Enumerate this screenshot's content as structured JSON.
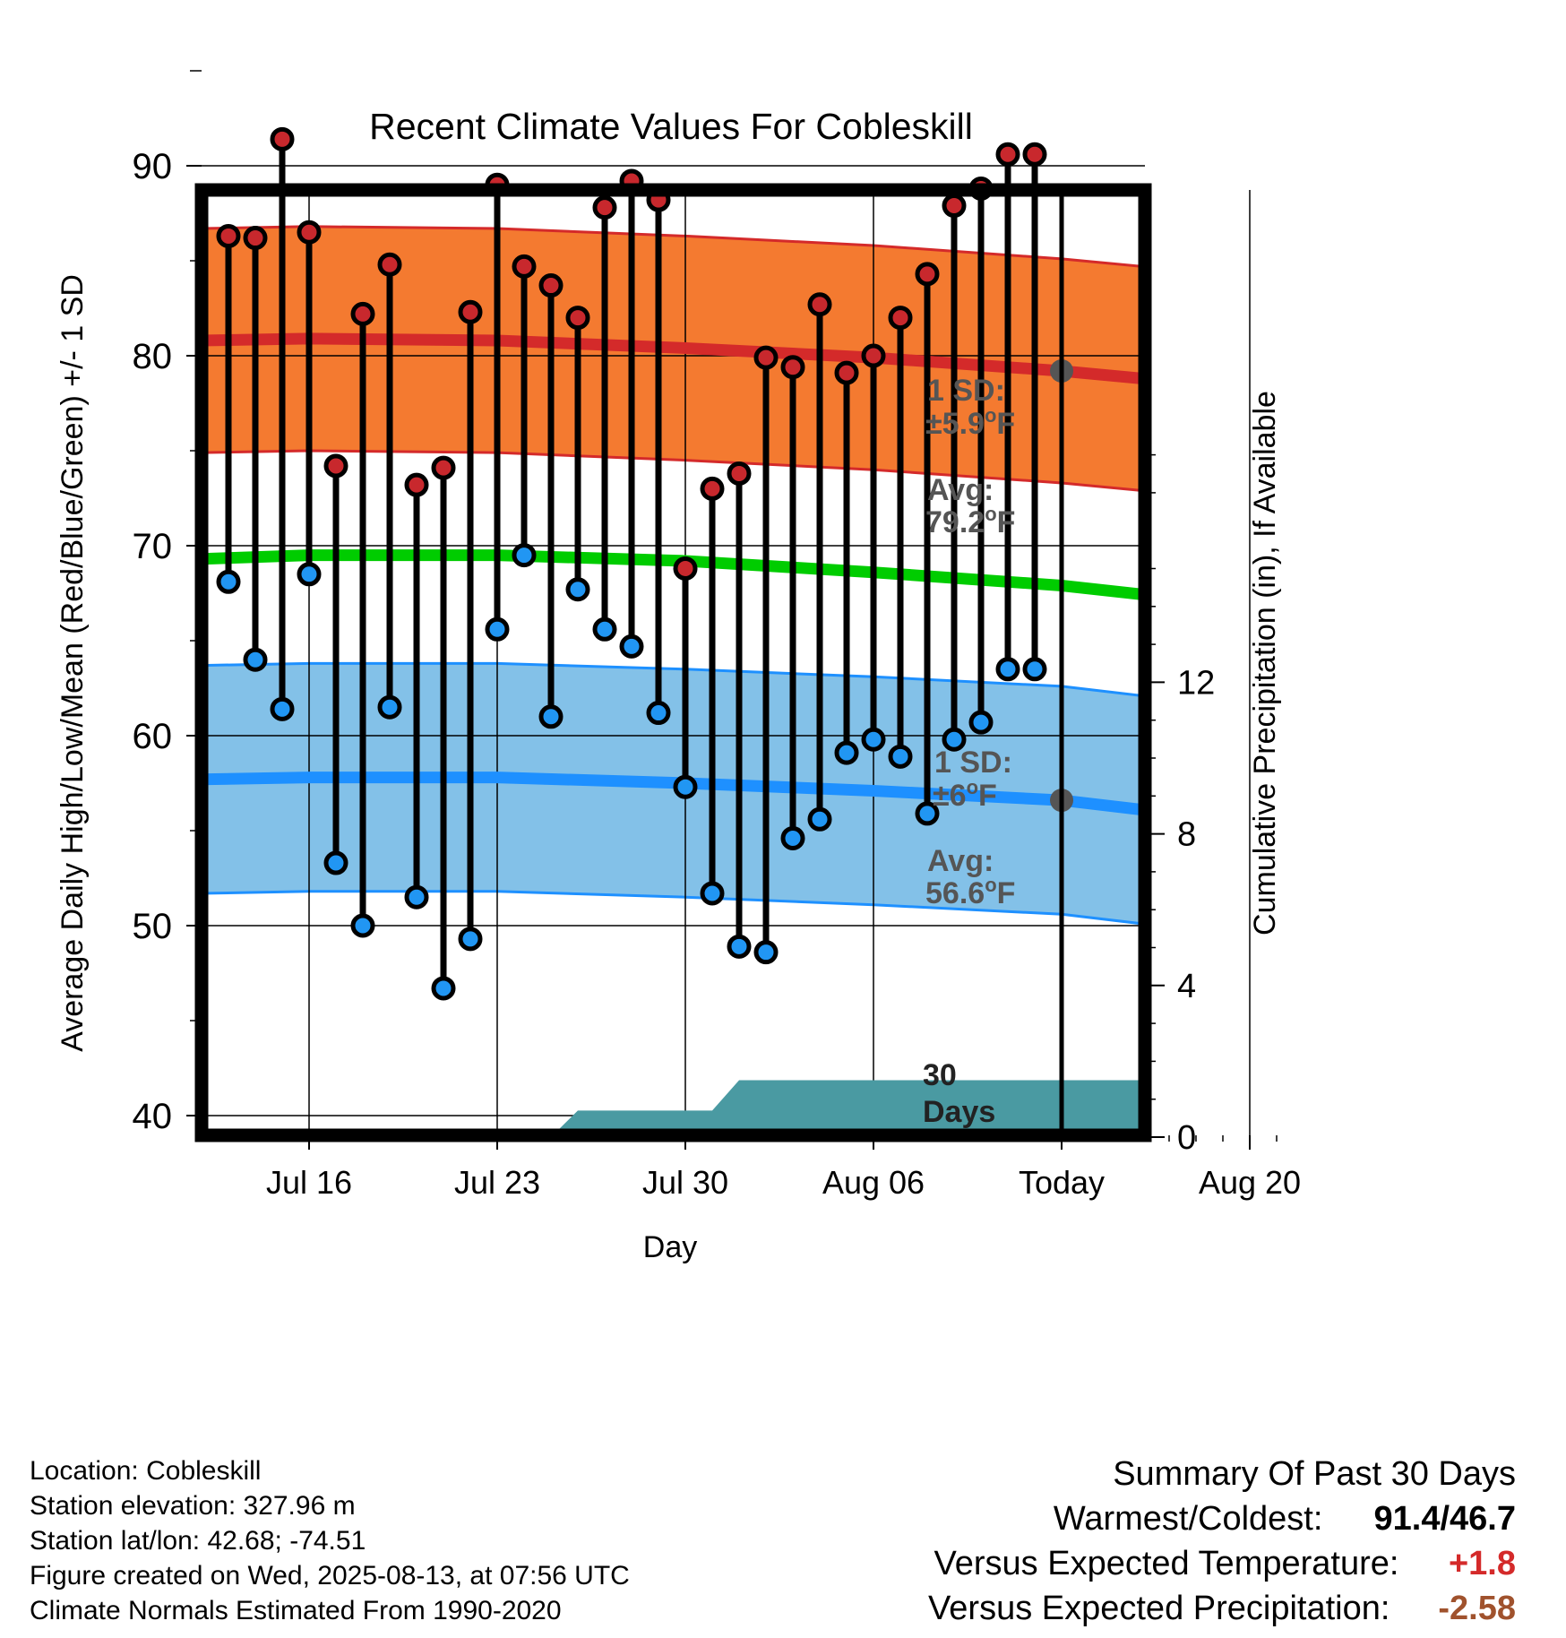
{
  "chart_data": {
    "type": "line",
    "title": "Recent Climate Values For Cobleskill",
    "xlabel": "Day",
    "ylabel": "Average Daily High/Low/Mean (Red/Blue/Green) +/- 1 SD",
    "y2label": "Cumulative Precipitation (in), If Available",
    "ylim": [
      39,
      96
    ],
    "y2lim": [
      0,
      19.5
    ],
    "xlim": [
      "2025-07-12",
      "2025-08-22"
    ],
    "x_ticks": [
      {
        "date": "2025-07-16",
        "label": "Jul 16"
      },
      {
        "date": "2025-07-23",
        "label": "Jul 23"
      },
      {
        "date": "2025-07-30",
        "label": "Jul 30"
      },
      {
        "date": "2025-08-06",
        "label": "Aug 06"
      },
      {
        "date": "2025-08-13",
        "label": "Today"
      },
      {
        "date": "2025-08-20",
        "label": "Aug 20"
      }
    ],
    "y_ticks": [
      40,
      50,
      60,
      70,
      80,
      90
    ],
    "y2_ticks": [
      0,
      4,
      8,
      12
    ],
    "today": "2025-08-13",
    "grid": true,
    "observed": {
      "dates": [
        "2025-07-13",
        "2025-07-14",
        "2025-07-15",
        "2025-07-16",
        "2025-07-17",
        "2025-07-18",
        "2025-07-19",
        "2025-07-20",
        "2025-07-21",
        "2025-07-22",
        "2025-07-23",
        "2025-07-24",
        "2025-07-25",
        "2025-07-26",
        "2025-07-27",
        "2025-07-28",
        "2025-07-29",
        "2025-07-30",
        "2025-07-31",
        "2025-08-01",
        "2025-08-02",
        "2025-08-03",
        "2025-08-04",
        "2025-08-05",
        "2025-08-06",
        "2025-08-07",
        "2025-08-08",
        "2025-08-09",
        "2025-08-10",
        "2025-08-11",
        "2025-08-12"
      ],
      "high": [
        86.3,
        86.2,
        91.4,
        86.5,
        74.2,
        82.2,
        84.8,
        73.2,
        74.1,
        82.3,
        89.0,
        84.7,
        83.7,
        82.0,
        87.8,
        89.2,
        88.2,
        68.8,
        73.0,
        73.8,
        79.9,
        79.4,
        82.7,
        79.1,
        80.0,
        82.0,
        84.3,
        87.9,
        88.8,
        90.6,
        90.6
      ],
      "low": [
        68.1,
        64.0,
        61.4,
        68.5,
        53.3,
        50.0,
        61.5,
        51.5,
        46.7,
        49.3,
        65.6,
        69.5,
        61.0,
        67.7,
        65.6,
        64.7,
        61.2,
        57.3,
        51.7,
        48.9,
        48.6,
        54.6,
        55.6,
        59.1,
        59.8,
        58.9,
        55.9,
        59.8,
        60.7,
        63.5,
        63.5
      ]
    },
    "normals": {
      "dates": [
        "2025-07-12",
        "2025-07-16",
        "2025-07-23",
        "2025-07-30",
        "2025-08-06",
        "2025-08-13",
        "2025-08-22"
      ],
      "high_avg": [
        80.8,
        80.9,
        80.8,
        80.4,
        79.9,
        79.2,
        78.0
      ],
      "low_avg": [
        57.7,
        57.8,
        57.8,
        57.5,
        57.1,
        56.6,
        55.1
      ],
      "mean_avg": [
        69.3,
        69.5,
        69.5,
        69.2,
        68.6,
        67.9,
        66.5
      ],
      "high_sd": 5.9,
      "low_sd": 6.0
    },
    "precip_cumulative": {
      "dates": [
        "2025-07-25",
        "2025-07-26",
        "2025-07-31",
        "2025-08-01",
        "2025-08-13",
        "2025-08-22"
      ],
      "values": [
        0,
        0.7,
        0.7,
        1.5,
        1.5,
        1.5
      ]
    },
    "annotations": {
      "high_sd": "1 SD:",
      "high_sd_value": "±5.9",
      "high_avg": "Avg:",
      "high_avg_value": "79.2",
      "low_sd": "1 SD:",
      "low_sd_value": "±6",
      "low_avg": "Avg:",
      "low_avg_value": "56.6",
      "unit_sup": "o",
      "unit_letter": "F",
      "precip_days": "30",
      "precip_days_label": "Days"
    },
    "colors": {
      "high_band": "#F47A30",
      "high_line": "#D42A2A",
      "high_point": "#C8282D",
      "low_band": "#83C1E8",
      "low_line": "#1E90FF",
      "low_point": "#2196F3",
      "mean_line": "#00CC00",
      "precip_fill": "#4A9AA2",
      "annotation": "#555555"
    }
  },
  "footer": {
    "location": "Location: Cobleskill",
    "elevation": "Station elevation: 327.96 m",
    "latlon": "Station lat/lon: 42.68; -74.51",
    "created": "Figure created on Wed, 2025-08-13, at 07:56 UTC",
    "normals": "Climate Normals Estimated From 1990-2020"
  },
  "summary": {
    "title": "Summary Of Past 30 Days",
    "warm_cold_label": "Warmest/Coldest:",
    "warm_cold_value": "91.4/46.7",
    "temp_label": "Versus Expected Temperature:",
    "temp_value": "+1.8",
    "temp_color": "#D42A2A",
    "precip_label": "Versus Expected Precipitation:",
    "precip_value": "-2.58",
    "precip_color": "#A0522D"
  }
}
